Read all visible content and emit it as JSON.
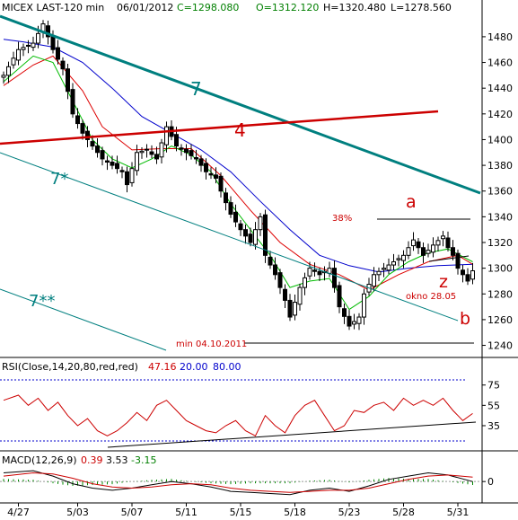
{
  "header": {
    "symbol": "MICEX LAST-120 min",
    "date": "06/01/2012",
    "close": "C=1298.080",
    "open": "O=1312.120",
    "high": "H=1320.480",
    "low": "L=1278.560"
  },
  "colors": {
    "candle": "#000000",
    "ma_fast": "#00bb00",
    "ma_mid": "#dd0000",
    "ma_slow": "#0000cc",
    "trend_teal": "#007f7f",
    "trend_red": "#cc0000",
    "rsi": "#cc0000",
    "macd_main": "#000000",
    "macd_signal": "#cc0000",
    "macd_hist": "#008800",
    "dotted_blue": "#0000cc"
  },
  "annotations": {
    "line7": "7",
    "line7star": "7*",
    "line7starstar": "7**",
    "line4": "4",
    "label_a": "a",
    "label_b": "b",
    "label_z": "z",
    "pct": "38%",
    "okno": "okno 28.05",
    "min_label": "min 04.10.2011"
  },
  "rsi_legend": {
    "name": "RSI(Close,14,20,80,red,red)",
    "value": "47.16",
    "lower": "20.00",
    "upper": "80.00"
  },
  "macd_legend": {
    "name": "MACD(12,26,9)",
    "macd": "0.39",
    "signal": "3.53",
    "hist": "-3.15"
  },
  "chart_data": {
    "type": "candlestick",
    "price_axis": {
      "ticks": [
        1240,
        1260,
        1280,
        1300,
        1320,
        1340,
        1360,
        1380,
        1400,
        1420,
        1440,
        1460,
        1480
      ],
      "range": [
        1232,
        1496
      ]
    },
    "rsi_axis": {
      "ticks": [
        35,
        55,
        75
      ],
      "range": [
        12,
        88
      ],
      "lower_level": 20,
      "upper_level": 80
    },
    "macd_axis": {
      "ticks": [
        0
      ],
      "range": [
        -18,
        15
      ]
    },
    "x_axis": {
      "labels": [
        "4/27",
        "5/03",
        "5/07",
        "5/11",
        "5/15",
        "5/18",
        "5/23",
        "5/28",
        "5/31"
      ],
      "label_bars": [
        3,
        15,
        26,
        37,
        48,
        59,
        70,
        81,
        92
      ]
    },
    "price_points": [
      [
        0,
        1450
      ],
      [
        3,
        1470
      ],
      [
        6,
        1475
      ],
      [
        8,
        1490
      ],
      [
        10,
        1470
      ],
      [
        12,
        1455
      ],
      [
        14,
        1420
      ],
      [
        16,
        1405
      ],
      [
        18,
        1395
      ],
      [
        20,
        1385
      ],
      [
        22,
        1380
      ],
      [
        24,
        1375
      ],
      [
        25,
        1365
      ],
      [
        27,
        1390
      ],
      [
        29,
        1392
      ],
      [
        31,
        1385
      ],
      [
        33,
        1410
      ],
      [
        35,
        1395
      ],
      [
        37,
        1390
      ],
      [
        39,
        1385
      ],
      [
        41,
        1375
      ],
      [
        43,
        1370
      ],
      [
        44,
        1360
      ],
      [
        46,
        1342
      ],
      [
        48,
        1330
      ],
      [
        50,
        1320
      ],
      [
        52,
        1340
      ],
      [
        53,
        1310
      ],
      [
        55,
        1295
      ],
      [
        57,
        1275
      ],
      [
        58,
        1262
      ],
      [
        60,
        1285
      ],
      [
        62,
        1300
      ],
      [
        64,
        1295
      ],
      [
        66,
        1300
      ],
      [
        68,
        1270
      ],
      [
        70,
        1255
      ],
      [
        72,
        1262
      ],
      [
        73,
        1280
      ],
      [
        75,
        1295
      ],
      [
        77,
        1300
      ],
      [
        79,
        1305
      ],
      [
        81,
        1310
      ],
      [
        83,
        1322
      ],
      [
        85,
        1310
      ],
      [
        87,
        1318
      ],
      [
        89,
        1325
      ],
      [
        90,
        1316
      ],
      [
        91,
        1310
      ],
      [
        92,
        1300
      ],
      [
        94,
        1290
      ],
      [
        95,
        1298
      ]
    ],
    "ma_fast_points": [
      [
        0,
        1445
      ],
      [
        6,
        1465
      ],
      [
        10,
        1460
      ],
      [
        14,
        1430
      ],
      [
        18,
        1400
      ],
      [
        22,
        1385
      ],
      [
        26,
        1378
      ],
      [
        30,
        1385
      ],
      [
        34,
        1395
      ],
      [
        38,
        1388
      ],
      [
        42,
        1375
      ],
      [
        46,
        1350
      ],
      [
        50,
        1330
      ],
      [
        54,
        1310
      ],
      [
        58,
        1285
      ],
      [
        62,
        1290
      ],
      [
        66,
        1292
      ],
      [
        70,
        1268
      ],
      [
        74,
        1278
      ],
      [
        78,
        1295
      ],
      [
        82,
        1305
      ],
      [
        86,
        1312
      ],
      [
        90,
        1315
      ],
      [
        95,
        1305
      ]
    ],
    "ma_mid_points": [
      [
        0,
        1442
      ],
      [
        6,
        1458
      ],
      [
        10,
        1465
      ],
      [
        16,
        1438
      ],
      [
        20,
        1410
      ],
      [
        26,
        1392
      ],
      [
        32,
        1393
      ],
      [
        38,
        1393
      ],
      [
        44,
        1372
      ],
      [
        50,
        1345
      ],
      [
        56,
        1320
      ],
      [
        62,
        1303
      ],
      [
        68,
        1295
      ],
      [
        74,
        1283
      ],
      [
        80,
        1295
      ],
      [
        86,
        1305
      ],
      [
        92,
        1310
      ],
      [
        95,
        1303
      ]
    ],
    "ma_slow_points": [
      [
        0,
        1478
      ],
      [
        4,
        1476
      ],
      [
        10,
        1472
      ],
      [
        16,
        1460
      ],
      [
        22,
        1440
      ],
      [
        28,
        1418
      ],
      [
        34,
        1405
      ],
      [
        40,
        1392
      ],
      [
        46,
        1375
      ],
      [
        52,
        1352
      ],
      [
        58,
        1330
      ],
      [
        64,
        1310
      ],
      [
        70,
        1302
      ],
      [
        76,
        1297
      ],
      [
        82,
        1300
      ],
      [
        88,
        1302
      ],
      [
        95,
        1303
      ]
    ],
    "rsi_points": [
      [
        0,
        60
      ],
      [
        3,
        65
      ],
      [
        5,
        55
      ],
      [
        7,
        62
      ],
      [
        9,
        50
      ],
      [
        11,
        58
      ],
      [
        13,
        45
      ],
      [
        15,
        35
      ],
      [
        17,
        42
      ],
      [
        19,
        30
      ],
      [
        21,
        25
      ],
      [
        23,
        30
      ],
      [
        25,
        38
      ],
      [
        27,
        48
      ],
      [
        29,
        40
      ],
      [
        31,
        55
      ],
      [
        33,
        60
      ],
      [
        35,
        50
      ],
      [
        37,
        40
      ],
      [
        39,
        35
      ],
      [
        41,
        30
      ],
      [
        43,
        28
      ],
      [
        45,
        35
      ],
      [
        47,
        40
      ],
      [
        49,
        30
      ],
      [
        51,
        25
      ],
      [
        53,
        45
      ],
      [
        55,
        35
      ],
      [
        57,
        28
      ],
      [
        59,
        45
      ],
      [
        61,
        55
      ],
      [
        63,
        60
      ],
      [
        65,
        45
      ],
      [
        67,
        30
      ],
      [
        69,
        35
      ],
      [
        71,
        50
      ],
      [
        73,
        48
      ],
      [
        75,
        55
      ],
      [
        77,
        58
      ],
      [
        79,
        50
      ],
      [
        81,
        62
      ],
      [
        83,
        55
      ],
      [
        85,
        60
      ],
      [
        87,
        55
      ],
      [
        89,
        62
      ],
      [
        91,
        50
      ],
      [
        93,
        40
      ],
      [
        95,
        47
      ]
    ],
    "macd_points": [
      [
        0,
        8
      ],
      [
        6,
        10
      ],
      [
        10,
        5
      ],
      [
        14,
        -2
      ],
      [
        18,
        -6
      ],
      [
        22,
        -8
      ],
      [
        26,
        -6
      ],
      [
        30,
        -3
      ],
      [
        34,
        0
      ],
      [
        38,
        -2
      ],
      [
        42,
        -5
      ],
      [
        46,
        -9
      ],
      [
        50,
        -10
      ],
      [
        54,
        -11
      ],
      [
        58,
        -12
      ],
      [
        62,
        -8
      ],
      [
        66,
        -6
      ],
      [
        70,
        -9
      ],
      [
        74,
        -4
      ],
      [
        78,
        2
      ],
      [
        82,
        5
      ],
      [
        86,
        8
      ],
      [
        90,
        6
      ],
      [
        95,
        0
      ]
    ],
    "signal_points": [
      [
        0,
        5
      ],
      [
        6,
        8
      ],
      [
        10,
        7
      ],
      [
        14,
        3
      ],
      [
        18,
        -2
      ],
      [
        22,
        -5
      ],
      [
        26,
        -6
      ],
      [
        30,
        -5
      ],
      [
        34,
        -3
      ],
      [
        38,
        -2
      ],
      [
        42,
        -3
      ],
      [
        46,
        -6
      ],
      [
        50,
        -8
      ],
      [
        54,
        -9
      ],
      [
        58,
        -10
      ],
      [
        62,
        -9
      ],
      [
        66,
        -8
      ],
      [
        70,
        -8
      ],
      [
        74,
        -6
      ],
      [
        78,
        -2
      ],
      [
        82,
        2
      ],
      [
        86,
        5
      ],
      [
        90,
        6
      ],
      [
        95,
        4
      ]
    ]
  }
}
